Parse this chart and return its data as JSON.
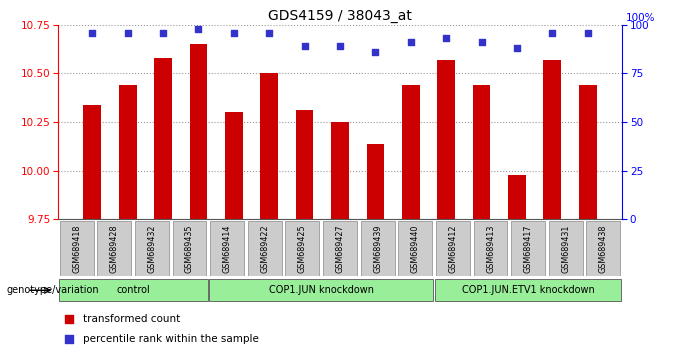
{
  "title": "GDS4159 / 38043_at",
  "samples": [
    "GSM689418",
    "GSM689428",
    "GSM689432",
    "GSM689435",
    "GSM689414",
    "GSM689422",
    "GSM689425",
    "GSM689427",
    "GSM689439",
    "GSM689440",
    "GSM689412",
    "GSM689413",
    "GSM689417",
    "GSM689431",
    "GSM689438"
  ],
  "bar_values": [
    10.34,
    10.44,
    10.58,
    10.65,
    10.3,
    10.5,
    10.31,
    10.25,
    10.14,
    10.44,
    10.57,
    10.44,
    9.98,
    10.57,
    10.44
  ],
  "percentile_values": [
    96,
    96,
    96,
    98,
    96,
    96,
    89,
    89,
    86,
    91,
    93,
    91,
    88,
    96,
    96
  ],
  "bar_color": "#cc0000",
  "percentile_color": "#3333cc",
  "ylim_left": [
    9.75,
    10.75
  ],
  "ylim_right": [
    0,
    100
  ],
  "yticks_left": [
    9.75,
    10.0,
    10.25,
    10.5,
    10.75
  ],
  "yticks_right": [
    0,
    25,
    50,
    75,
    100
  ],
  "groups": [
    {
      "label": "control",
      "start": 0,
      "end": 4
    },
    {
      "label": "COP1.JUN knockdown",
      "start": 4,
      "end": 10
    },
    {
      "label": "COP1.JUN.ETV1 knockdown",
      "start": 10,
      "end": 15
    }
  ],
  "group_color": "#99ee99",
  "sample_box_color": "#cccccc",
  "sample_box_edge": "#888888",
  "legend_items": [
    {
      "label": "transformed count",
      "color": "#cc0000"
    },
    {
      "label": "percentile rank within the sample",
      "color": "#3333cc"
    }
  ],
  "genotype_label": "genotype/variation",
  "background_color": "#ffffff"
}
